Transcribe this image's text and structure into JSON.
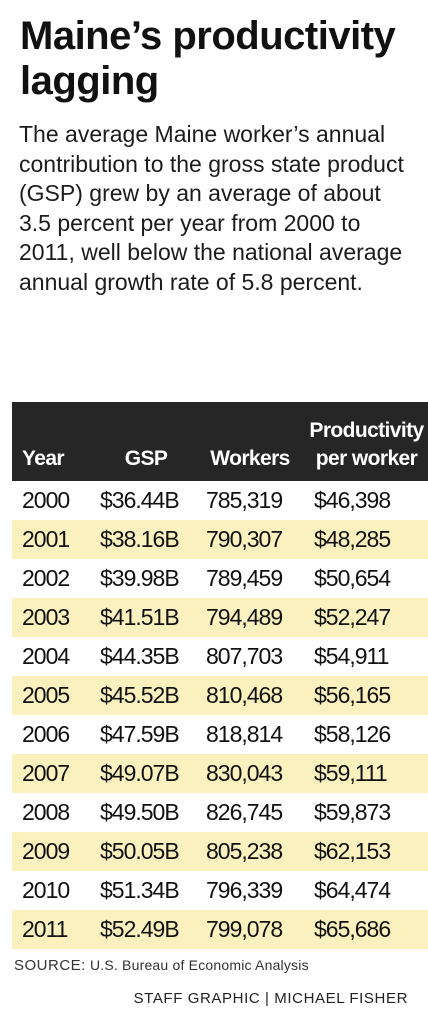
{
  "title": "Maine’s productivity lagging",
  "description": "The average Maine worker’s annual contribution to the gross state product (GSP) grew by an average of about 3.5 percent per year from 2000 to 2011, well below the national average annual growth rate of 5.8 percent.",
  "chart_data": {
    "type": "table",
    "columns": [
      "Year",
      "GSP",
      "Workers",
      "Productivity per worker"
    ],
    "rows": [
      [
        "2000",
        "$36.44B",
        "785,319",
        "$46,398"
      ],
      [
        "2001",
        "$38.16B",
        "790,307",
        "$48,285"
      ],
      [
        "2002",
        "$39.98B",
        "789,459",
        "$50,654"
      ],
      [
        "2003",
        "$41.51B",
        "794,489",
        "$52,247"
      ],
      [
        "2004",
        "$44.35B",
        "807,703",
        "$54,911"
      ],
      [
        "2005",
        "$45.52B",
        "810,468",
        "$56,165"
      ],
      [
        "2006",
        "$47.59B",
        "818,814",
        "$58,126"
      ],
      [
        "2007",
        "$49.07B",
        "830,043",
        "$59,111"
      ],
      [
        "2008",
        "$49.50B",
        "826,745",
        "$59,873"
      ],
      [
        "2009",
        "$50.05B",
        "805,238",
        "$62,153"
      ],
      [
        "2010",
        "$51.34B",
        "796,339",
        "$64,474"
      ],
      [
        "2011",
        "$52.49B",
        "799,078",
        "$65,686"
      ]
    ],
    "row_colors": [
      "#ffffff",
      "#fbf1bf"
    ],
    "header_color": "#262626"
  },
  "source": {
    "label": "SOURCE:",
    "text": "U.S. Bureau of Economic Analysis"
  },
  "credit": "STAFF GRAPHIC | MICHAEL FISHER"
}
